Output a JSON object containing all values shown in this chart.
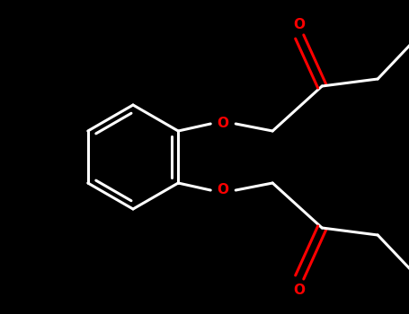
{
  "background_color": "#000000",
  "bond_color": "#ffffff",
  "heteroatom_color": "#ff0000",
  "line_width": 2.2,
  "figure_width": 4.55,
  "figure_height": 3.5,
  "dpi": 100,
  "xlim": [
    0,
    455
  ],
  "ylim": [
    0,
    350
  ]
}
